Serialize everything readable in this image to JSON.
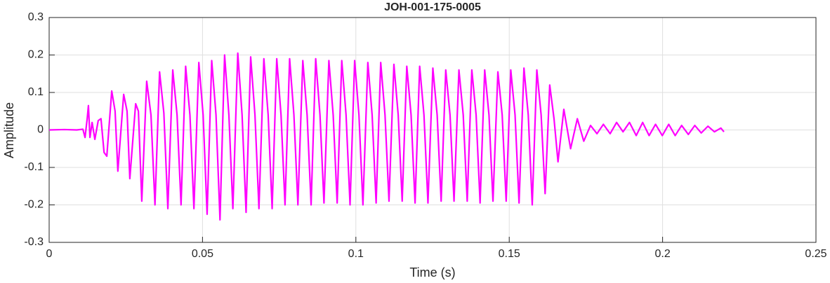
{
  "chart_data": {
    "type": "line",
    "title": "JOH-001-175-0005",
    "xlabel": "Time (s)",
    "ylabel": "Amplitude",
    "color": "#ff00ff",
    "grid": true,
    "xlim": [
      0,
      0.25
    ],
    "xticks": [
      0,
      0.05,
      0.1,
      0.15,
      0.2,
      0.25
    ],
    "ylim": [
      -0.3,
      0.3
    ],
    "yticks": [
      -0.3,
      -0.2,
      -0.1,
      0,
      0.1,
      0.2,
      0.3
    ],
    "x": [
      0,
      0.005,
      0.009,
      0.011,
      0.0117,
      0.0124,
      0.0128,
      0.0133,
      0.014,
      0.0149,
      0.016,
      0.0169,
      0.0179,
      0.0188,
      0.0204,
      0.0215,
      0.0224,
      0.0243,
      0.0254,
      0.0263,
      0.0282,
      0.0291,
      0.0302,
      0.0318,
      0.0332,
      0.0345,
      0.036,
      0.0374,
      0.0387,
      0.0403,
      0.0417,
      0.043,
      0.0445,
      0.0459,
      0.0472,
      0.0488,
      0.0502,
      0.0515,
      0.053,
      0.0544,
      0.0557,
      0.0572,
      0.0586,
      0.0599,
      0.0615,
      0.0629,
      0.0642,
      0.0657,
      0.0671,
      0.0684,
      0.07,
      0.0714,
      0.0727,
      0.0742,
      0.0756,
      0.0769,
      0.0784,
      0.0798,
      0.0811,
      0.0827,
      0.0841,
      0.0854,
      0.0869,
      0.0883,
      0.0896,
      0.0912,
      0.0926,
      0.0939,
      0.0954,
      0.0968,
      0.0981,
      0.0996,
      0.101,
      0.1023,
      0.1039,
      0.1053,
      0.1066,
      0.1081,
      0.1095,
      0.1108,
      0.1124,
      0.1138,
      0.1151,
      0.1166,
      0.118,
      0.1193,
      0.1208,
      0.1222,
      0.1235,
      0.1251,
      0.1265,
      0.1278,
      0.1293,
      0.1307,
      0.132,
      0.1336,
      0.135,
      0.1363,
      0.1378,
      0.1392,
      0.1405,
      0.142,
      0.1434,
      0.1447,
      0.1463,
      0.1477,
      0.149,
      0.1505,
      0.1519,
      0.1532,
      0.1548,
      0.1562,
      0.1575,
      0.159,
      0.1604,
      0.1617,
      0.1632,
      0.1646,
      0.1659,
      0.1678,
      0.17,
      0.1722,
      0.1743,
      0.1765,
      0.1786,
      0.1807,
      0.1829,
      0.185,
      0.1871,
      0.1892,
      0.1914,
      0.1935,
      0.1956,
      0.1977,
      0.1999,
      0.202,
      0.2041,
      0.2062,
      0.2084,
      0.2105,
      0.2126,
      0.2148,
      0.2169,
      0.219,
      0.22
    ],
    "values": [
      0,
      0.001,
      0,
      0.002,
      -0.02,
      0.03,
      0.065,
      -0.02,
      0.02,
      -0.025,
      0.025,
      0.03,
      -0.06,
      -0.07,
      0.104,
      0.05,
      -0.11,
      0.095,
      0.05,
      -0.13,
      0.07,
      0.05,
      -0.19,
      0.13,
      0.04,
      -0.2,
      0.155,
      0.045,
      -0.21,
      0.16,
      0.04,
      -0.2,
      0.17,
      0.04,
      -0.21,
      0.18,
      0.04,
      -0.225,
      0.185,
      0.04,
      -0.24,
      0.2,
      0.04,
      -0.21,
      0.205,
      0.04,
      -0.22,
      0.195,
      0.04,
      -0.21,
      0.19,
      0.04,
      -0.21,
      0.19,
      0.04,
      -0.2,
      0.19,
      0.04,
      -0.2,
      0.185,
      0.04,
      -0.2,
      0.19,
      0.04,
      -0.195,
      0.185,
      0.04,
      -0.195,
      0.185,
      0.04,
      -0.2,
      0.185,
      0.04,
      -0.2,
      0.18,
      0.04,
      -0.195,
      0.18,
      0.04,
      -0.19,
      0.175,
      0.04,
      -0.19,
      0.17,
      0.04,
      -0.195,
      0.17,
      0.04,
      -0.195,
      0.165,
      0.04,
      -0.19,
      0.16,
      0.04,
      -0.19,
      0.16,
      0.04,
      -0.19,
      0.16,
      0.04,
      -0.195,
      0.16,
      0.04,
      -0.19,
      0.155,
      0.04,
      -0.19,
      0.16,
      0.04,
      -0.195,
      0.165,
      0.04,
      -0.2,
      0.16,
      0.04,
      -0.17,
      0.12,
      0.03,
      -0.085,
      0.055,
      -0.05,
      0.03,
      -0.03,
      0.012,
      -0.01,
      0.015,
      -0.01,
      0.02,
      -0.005,
      0.02,
      -0.015,
      0.02,
      -0.015,
      0.015,
      -0.015,
      0.015,
      -0.015,
      0.012,
      -0.012,
      0.012,
      -0.008,
      0.01,
      -0.005,
      0.005,
      -0.005
    ]
  }
}
